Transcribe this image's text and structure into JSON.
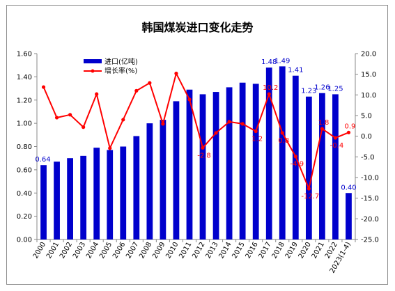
{
  "chart_data": {
    "type": "bar",
    "title": "韩国煤炭进口变化走势",
    "categories": [
      "2000",
      "2001",
      "2002",
      "2003",
      "2004",
      "2005",
      "2006",
      "2007",
      "2008",
      "2009",
      "2010",
      "2011",
      "2012",
      "2013",
      "2014",
      "2015",
      "2016",
      "2017",
      "2018",
      "2019",
      "2020",
      "2021",
      "2022",
      "2023(1-4)"
    ],
    "series": [
      {
        "name": "进口(亿吨)",
        "type": "bar",
        "axis": "left",
        "color": "#0000cc",
        "values": [
          0.64,
          0.67,
          0.7,
          0.72,
          0.79,
          0.77,
          0.8,
          0.89,
          1.0,
          1.03,
          1.19,
          1.29,
          1.25,
          1.27,
          1.31,
          1.35,
          1.34,
          1.48,
          1.49,
          1.41,
          1.23,
          1.26,
          1.25,
          0.4
        ]
      },
      {
        "name": "增长率(%)",
        "type": "line",
        "axis": "right",
        "color": "#ff0000",
        "values": [
          11.9,
          4.5,
          5.2,
          2.2,
          10.2,
          -2.9,
          4.0,
          11.0,
          12.9,
          3.0,
          15.2,
          8.9,
          -2.8,
          0.8,
          3.5,
          3.0,
          1.2,
          10.2,
          0.8,
          -4.9,
          -12.7,
          1.8,
          -0.4,
          0.9
        ]
      }
    ],
    "bar_labels": [
      {
        "index": 0,
        "text": "0.64"
      },
      {
        "index": 17,
        "text": "1.48"
      },
      {
        "index": 18,
        "text": "1.49"
      },
      {
        "index": 19,
        "text": "1.41"
      },
      {
        "index": 20,
        "text": "1.23"
      },
      {
        "index": 21,
        "text": "1.26"
      },
      {
        "index": 22,
        "text": "1.25"
      },
      {
        "index": 23,
        "text": "0.40"
      }
    ],
    "line_labels": [
      {
        "index": 12,
        "text": "-2.8"
      },
      {
        "index": 16,
        "text": "1.2"
      },
      {
        "index": 17,
        "text": "10.2"
      },
      {
        "index": 18,
        "text": "0.8"
      },
      {
        "index": 19,
        "text": "-4.9"
      },
      {
        "index": 20,
        "text": "-12.7"
      },
      {
        "index": 21,
        "text": "1.8"
      },
      {
        "index": 22,
        "text": "-0.4"
      },
      {
        "index": 23,
        "text": "0.9"
      }
    ],
    "y_left": {
      "min": 0,
      "max": 1.6,
      "step": 0.2,
      "decimals": 2
    },
    "y_right": {
      "min": -25,
      "max": 20,
      "step": 5,
      "decimals": 1
    },
    "legend_position": "top-left",
    "grid": false
  }
}
